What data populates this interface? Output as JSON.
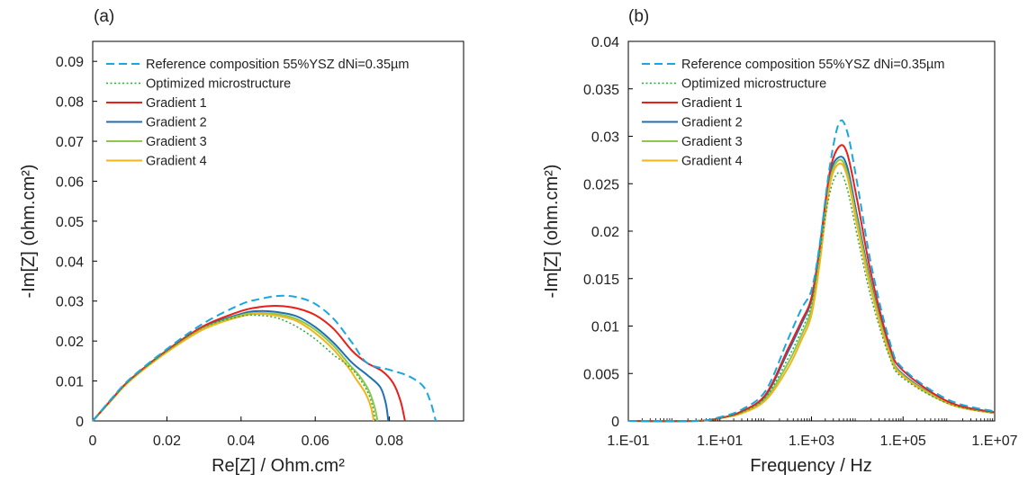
{
  "chart_data": [
    {
      "type": "line",
      "panel_label": "(a)",
      "xlabel": "Re[Z] / Ohm.cm²",
      "ylabel": "-Im[Z] (ohm.cm²)",
      "xlim": [
        0,
        0.1
      ],
      "ylim": [
        0,
        0.095
      ],
      "x_ticks": [
        "0",
        "0.02",
        "0.04",
        "0.06",
        "0.08"
      ],
      "y_ticks": [
        "0",
        "0.01",
        "0.02",
        "0.03",
        "0.04",
        "0.05",
        "0.06",
        "0.07",
        "0.08",
        "0.09"
      ],
      "x_tick_values": [
        0,
        0.02,
        0.04,
        0.06,
        0.08
      ],
      "y_tick_values": [
        0,
        0.01,
        0.02,
        0.03,
        0.04,
        0.05,
        0.06,
        0.07,
        0.08,
        0.09
      ],
      "grid": false,
      "legend_position": "top-right",
      "series": [
        {
          "name": "Reference composition 55%YSZ dNi=0.35µm",
          "color": "#1AA7E0",
          "dash": "dashed",
          "points": [
            [
              0,
              0
            ],
            [
              0.005,
              0.0055
            ],
            [
              0.01,
              0.0105
            ],
            [
              0.02,
              0.018
            ],
            [
              0.03,
              0.0245
            ],
            [
              0.04,
              0.0292
            ],
            [
              0.045,
              0.0305
            ],
            [
              0.05,
              0.0313
            ],
            [
              0.055,
              0.031
            ],
            [
              0.06,
              0.0293
            ],
            [
              0.065,
              0.0255
            ],
            [
              0.07,
              0.0195
            ],
            [
              0.074,
              0.0145
            ],
            [
              0.08,
              0.0128
            ],
            [
              0.085,
              0.0113
            ],
            [
              0.089,
              0.0088
            ],
            [
              0.091,
              0.005
            ],
            [
              0.0925,
              0
            ]
          ]
        },
        {
          "name": "Optimized microstructure",
          "color": "#2EA83A",
          "dash": "dotted",
          "points": [
            [
              0,
              0
            ],
            [
              0.005,
              0.0052
            ],
            [
              0.01,
              0.0102
            ],
            [
              0.02,
              0.0175
            ],
            [
              0.03,
              0.0235
            ],
            [
              0.04,
              0.0262
            ],
            [
              0.045,
              0.0264
            ],
            [
              0.05,
              0.0257
            ],
            [
              0.055,
              0.0236
            ],
            [
              0.06,
              0.0205
            ],
            [
              0.065,
              0.0165
            ],
            [
              0.068,
              0.0145
            ],
            [
              0.071,
              0.0118
            ],
            [
              0.074,
              0.0075
            ],
            [
              0.0755,
              0.0035
            ],
            [
              0.0762,
              0
            ]
          ]
        },
        {
          "name": "Gradient 1",
          "color": "#E8201A",
          "dash": "solid",
          "points": [
            [
              0,
              0
            ],
            [
              0.005,
              0.0053
            ],
            [
              0.01,
              0.0103
            ],
            [
              0.02,
              0.0177
            ],
            [
              0.03,
              0.0238
            ],
            [
              0.04,
              0.0275
            ],
            [
              0.045,
              0.0285
            ],
            [
              0.05,
              0.0288
            ],
            [
              0.055,
              0.0282
            ],
            [
              0.06,
              0.0265
            ],
            [
              0.065,
              0.023
            ],
            [
              0.07,
              0.0175
            ],
            [
              0.074,
              0.0145
            ],
            [
              0.078,
              0.0125
            ],
            [
              0.081,
              0.0095
            ],
            [
              0.083,
              0.005
            ],
            [
              0.0842,
              0
            ]
          ]
        },
        {
          "name": "Gradient 2",
          "color": "#1F6FB5",
          "dash": "solid",
          "points": [
            [
              0,
              0
            ],
            [
              0.005,
              0.0052
            ],
            [
              0.01,
              0.0102
            ],
            [
              0.02,
              0.0175
            ],
            [
              0.03,
              0.0235
            ],
            [
              0.04,
              0.0268
            ],
            [
              0.045,
              0.0275
            ],
            [
              0.05,
              0.0272
            ],
            [
              0.055,
              0.0262
            ],
            [
              0.06,
              0.0235
            ],
            [
              0.065,
              0.0195
            ],
            [
              0.07,
              0.0145
            ],
            [
              0.074,
              0.0115
            ],
            [
              0.0775,
              0.0085
            ],
            [
              0.079,
              0.0045
            ],
            [
              0.0797,
              0
            ]
          ]
        },
        {
          "name": "Gradient 3",
          "color": "#8CC84B",
          "dash": "solid",
          "points": [
            [
              0,
              0
            ],
            [
              0.005,
              0.0052
            ],
            [
              0.01,
              0.0101
            ],
            [
              0.02,
              0.0174
            ],
            [
              0.03,
              0.0233
            ],
            [
              0.04,
              0.0265
            ],
            [
              0.045,
              0.027
            ],
            [
              0.05,
              0.0267
            ],
            [
              0.055,
              0.0255
            ],
            [
              0.06,
              0.0228
            ],
            [
              0.065,
              0.0187
            ],
            [
              0.069,
              0.0143
            ],
            [
              0.072,
              0.0112
            ],
            [
              0.0745,
              0.0075
            ],
            [
              0.076,
              0.0035
            ],
            [
              0.0768,
              0
            ]
          ]
        },
        {
          "name": "Gradient 4",
          "color": "#F2B51C",
          "dash": "solid",
          "points": [
            [
              0,
              0
            ],
            [
              0.005,
              0.0051
            ],
            [
              0.01,
              0.01
            ],
            [
              0.02,
              0.0172
            ],
            [
              0.03,
              0.023
            ],
            [
              0.04,
              0.0262
            ],
            [
              0.045,
              0.0268
            ],
            [
              0.05,
              0.0263
            ],
            [
              0.055,
              0.025
            ],
            [
              0.06,
              0.022
            ],
            [
              0.065,
              0.0178
            ],
            [
              0.069,
              0.0133
            ],
            [
              0.071,
              0.0105
            ],
            [
              0.0735,
              0.007
            ],
            [
              0.075,
              0.0035
            ],
            [
              0.0758,
              0
            ]
          ]
        }
      ]
    },
    {
      "type": "line",
      "panel_label": "(b)",
      "xlabel": "Frequency / Hz",
      "ylabel": "-Im[Z] (ohm.cm²)",
      "xscale": "log",
      "xlim": [
        0.1,
        10000000
      ],
      "ylim": [
        0,
        0.04
      ],
      "x_ticks": [
        "1.E-01",
        "1.E+01",
        "1.E+03",
        "1.E+05",
        "1.E+07"
      ],
      "y_ticks": [
        "0",
        "0.005",
        "0.01",
        "0.015",
        "0.02",
        "0.025",
        "0.03",
        "0.035",
        "0.04"
      ],
      "x_tick_values": [
        0.1,
        10,
        1000,
        100000,
        10000000
      ],
      "y_tick_values": [
        0,
        0.005,
        0.01,
        0.015,
        0.02,
        0.025,
        0.03,
        0.035,
        0.04
      ],
      "grid": false,
      "legend_position": "top-right",
      "series": [
        {
          "name": "Reference composition 55%YSZ dNi=0.35µm",
          "color": "#1AA7E0",
          "dash": "dashed",
          "points": [
            [
              0.1,
              0
            ],
            [
              3,
              0
            ],
            [
              10,
              0.0004
            ],
            [
              30,
              0.0012
            ],
            [
              100,
              0.0032
            ],
            [
              300,
              0.0085
            ],
            [
              600,
              0.0118
            ],
            [
              1000,
              0.0138
            ],
            [
              1500,
              0.0185
            ],
            [
              2500,
              0.0268
            ],
            [
              4000,
              0.0314
            ],
            [
              6000,
              0.0305
            ],
            [
              10000,
              0.025
            ],
            [
              20000,
              0.0165
            ],
            [
              50000,
              0.0085
            ],
            [
              100000,
              0.0055
            ],
            [
              1000000,
              0.0022
            ],
            [
              10000000,
              0.001
            ]
          ]
        },
        {
          "name": "Optimized microstructure",
          "color": "#2EA83A",
          "dash": "dotted",
          "points": [
            [
              0.1,
              0
            ],
            [
              3,
              0
            ],
            [
              10,
              0.0003
            ],
            [
              30,
              0.0009
            ],
            [
              100,
              0.0025
            ],
            [
              300,
              0.0065
            ],
            [
              600,
              0.0095
            ],
            [
              1000,
              0.0123
            ],
            [
              1500,
              0.0175
            ],
            [
              2500,
              0.024
            ],
            [
              4000,
              0.0262
            ],
            [
              6000,
              0.0245
            ],
            [
              10000,
              0.0195
            ],
            [
              20000,
              0.013
            ],
            [
              50000,
              0.0068
            ],
            [
              100000,
              0.0045
            ],
            [
              1000000,
              0.0018
            ],
            [
              10000000,
              0.0008
            ]
          ]
        },
        {
          "name": "Gradient 1",
          "color": "#E8201A",
          "dash": "solid",
          "points": [
            [
              0.1,
              0
            ],
            [
              3,
              0
            ],
            [
              10,
              0.0003
            ],
            [
              30,
              0.001
            ],
            [
              100,
              0.0028
            ],
            [
              300,
              0.0075
            ],
            [
              600,
              0.0105
            ],
            [
              1000,
              0.013
            ],
            [
              1500,
              0.0182
            ],
            [
              2500,
              0.0262
            ],
            [
              4000,
              0.0289
            ],
            [
              6000,
              0.0282
            ],
            [
              10000,
              0.0232
            ],
            [
              20000,
              0.0155
            ],
            [
              50000,
              0.008
            ],
            [
              100000,
              0.0053
            ],
            [
              1000000,
              0.002
            ],
            [
              10000000,
              0.0009
            ]
          ]
        },
        {
          "name": "Gradient 2",
          "color": "#1F6FB5",
          "dash": "solid",
          "points": [
            [
              0.1,
              0
            ],
            [
              3,
              0
            ],
            [
              10,
              0.0003
            ],
            [
              30,
              0.001
            ],
            [
              100,
              0.0027
            ],
            [
              300,
              0.0072
            ],
            [
              600,
              0.0102
            ],
            [
              1000,
              0.0128
            ],
            [
              1500,
              0.018
            ],
            [
              2500,
              0.0258
            ],
            [
              4000,
              0.0278
            ],
            [
              6000,
              0.0268
            ],
            [
              10000,
              0.0215
            ],
            [
              20000,
              0.0145
            ],
            [
              50000,
              0.0074
            ],
            [
              100000,
              0.0049
            ],
            [
              1000000,
              0.0019
            ],
            [
              10000000,
              0.0009
            ]
          ]
        },
        {
          "name": "Gradient 3",
          "color": "#8CC84B",
          "dash": "solid",
          "points": [
            [
              0.1,
              0
            ],
            [
              3,
              0
            ],
            [
              10,
              0.0003
            ],
            [
              30,
              0.0009
            ],
            [
              100,
              0.0024
            ],
            [
              300,
              0.006
            ],
            [
              600,
              0.009
            ],
            [
              1000,
              0.0118
            ],
            [
              1500,
              0.0172
            ],
            [
              2500,
              0.0252
            ],
            [
              4000,
              0.0275
            ],
            [
              6000,
              0.0262
            ],
            [
              10000,
              0.021
            ],
            [
              20000,
              0.0142
            ],
            [
              50000,
              0.0073
            ],
            [
              100000,
              0.0048
            ],
            [
              1000000,
              0.0019
            ],
            [
              10000000,
              0.0009
            ]
          ]
        },
        {
          "name": "Gradient 4",
          "color": "#F2B51C",
          "dash": "solid",
          "points": [
            [
              0.1,
              0
            ],
            [
              3,
              0
            ],
            [
              10,
              0.0003
            ],
            [
              30,
              0.0008
            ],
            [
              100,
              0.0022
            ],
            [
              300,
              0.0055
            ],
            [
              600,
              0.0085
            ],
            [
              1000,
              0.0112
            ],
            [
              1500,
              0.0165
            ],
            [
              2500,
              0.0248
            ],
            [
              4000,
              0.0271
            ],
            [
              6000,
              0.0258
            ],
            [
              10000,
              0.0205
            ],
            [
              20000,
              0.0138
            ],
            [
              50000,
              0.0071
            ],
            [
              100000,
              0.0047
            ],
            [
              1000000,
              0.0018
            ],
            [
              10000000,
              0.0008
            ]
          ]
        }
      ]
    }
  ]
}
